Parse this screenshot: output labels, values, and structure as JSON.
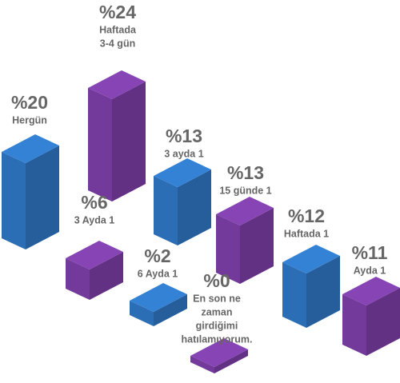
{
  "chart_data": {
    "type": "isometric-bar",
    "categories": [
      [
        "Hergün"
      ],
      [
        "Haftada",
        "3-4 gün"
      ],
      [
        "3 Ayda 1"
      ],
      [
        "3 ayda 1"
      ],
      [
        "6 Ayda 1"
      ],
      [
        "15 günde 1"
      ],
      [
        "En son ne",
        "zaman",
        "girdiğimi",
        "hatılamıyorum."
      ],
      [
        "Haftada 1"
      ],
      [
        "Ayda 1"
      ]
    ],
    "values": [
      20,
      24,
      6,
      13,
      2,
      13,
      0,
      12,
      11
    ],
    "value_labels": [
      "%20",
      "%24",
      "%6",
      "%13",
      "%2",
      "%13",
      "%0",
      "%12",
      "%11"
    ],
    "colors": [
      "#3078c6",
      "#7d3fa8",
      "#7d3fa8",
      "#3078c6",
      "#3078c6",
      "#7d3fa8",
      "#7d3fa8",
      "#3078c6",
      "#7d3fa8"
    ]
  }
}
